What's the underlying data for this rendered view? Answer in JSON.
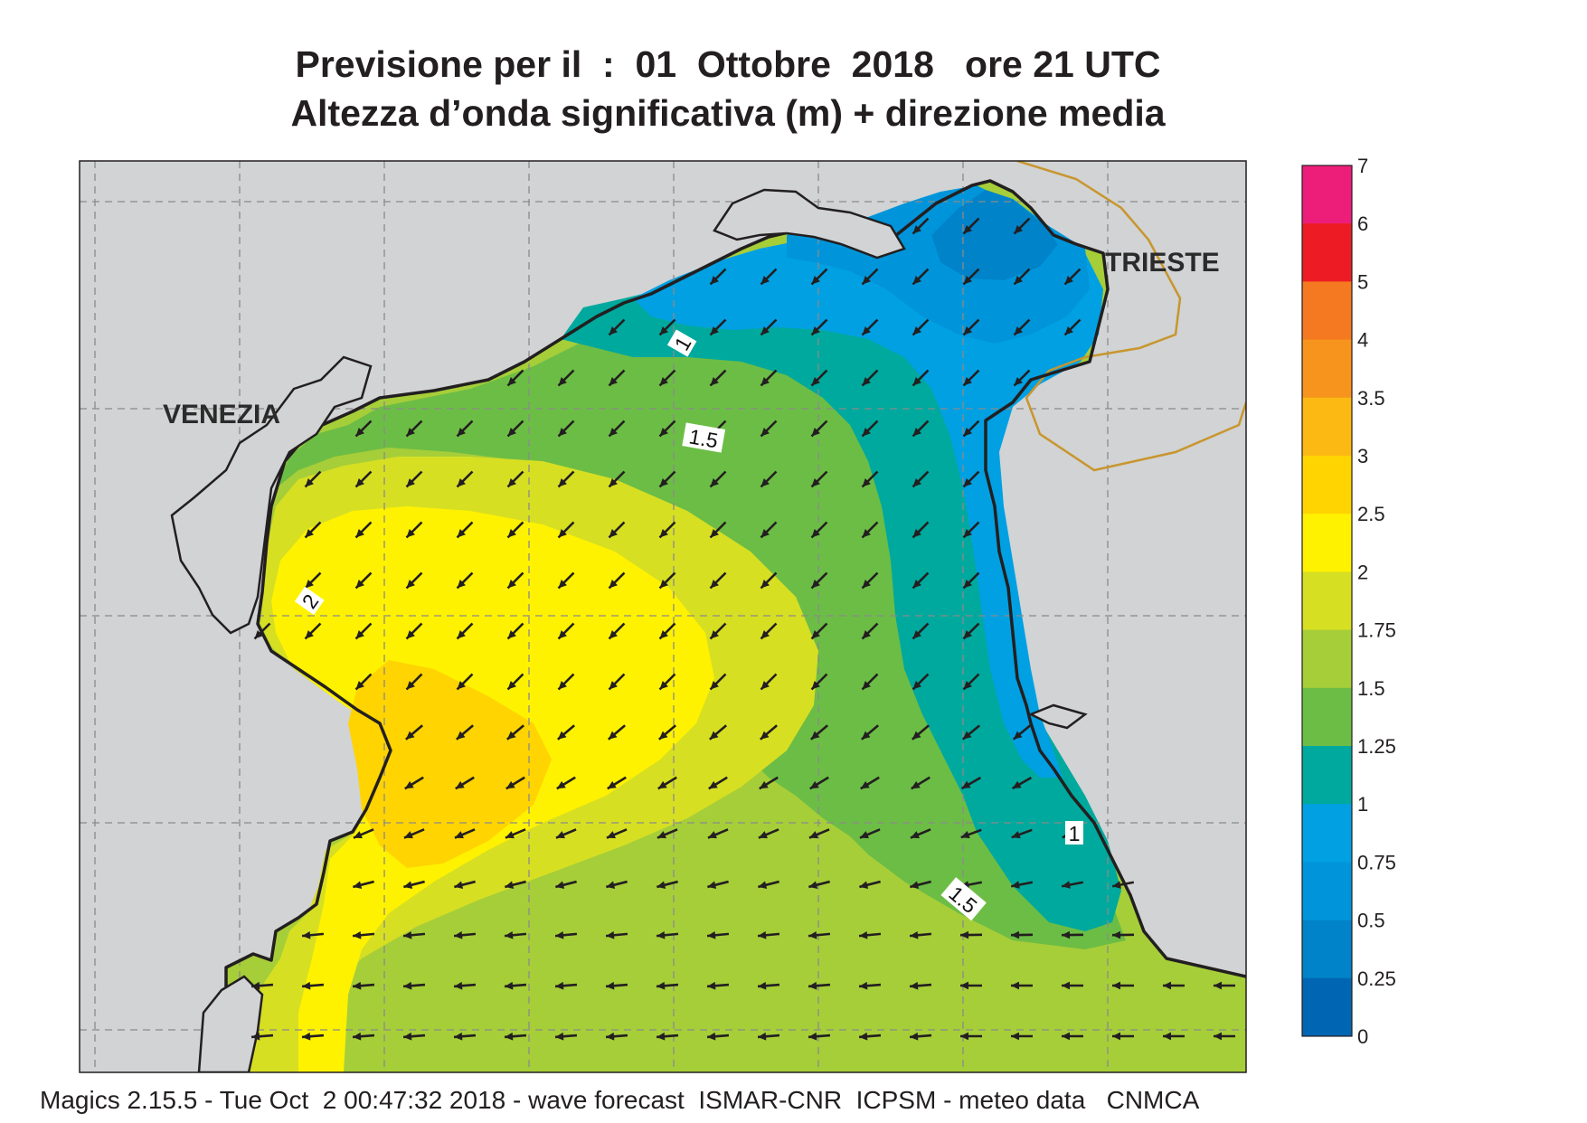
{
  "title_line1": "Previsione per il  :  01  Ottobre  2018   ore 21 UTC",
  "title_line2": "Altezza d’onda significativa (m) + direzione media",
  "footer": "Magics 2.15.5 - Tue Oct  2 00:47:32 2018 - wave forecast  ISMAR-CNR  ICPSM - meteo data   CNMCA",
  "map": {
    "cities": [
      "VENEZIA",
      "TRIESTE"
    ],
    "contour_labels": [
      "1",
      "1.5",
      "2",
      "1",
      "1.5"
    ],
    "land_color": "#d1d3d4",
    "coast_color": "#231f20",
    "border_color": "#c8962e",
    "grid_style": "dashed",
    "arrow_color": "#231f20"
  },
  "legend": {
    "title": "",
    "levels": [
      "7",
      "6",
      "5",
      "4",
      "3.5",
      "3",
      "2.5",
      "2",
      "1.75",
      "1.5",
      "1.25",
      "1",
      "0.75",
      "0.5",
      "0.25",
      "0"
    ],
    "colors": [
      "#ed1e79",
      "#ed1c24",
      "#f47920",
      "#f7941d",
      "#fdb913",
      "#ffd400",
      "#fff200",
      "#d7df23",
      "#a6ce39",
      "#6cbd45",
      "#00a99d",
      "#00a0e3",
      "#0095da",
      "#0083c9",
      "#0066b3"
    ]
  }
}
